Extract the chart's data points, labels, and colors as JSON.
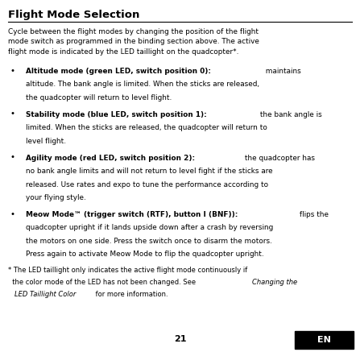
{
  "title": "Flight Mode Selection",
  "bg_color": "#ffffff",
  "text_color": "#000000",
  "en_bg_color": "#000000",
  "en_text_color": "#ffffff",
  "page_number": "21",
  "intro": "Cycle between the flight modes by changing the position of the flight\nmode switch as programmed in the binding section above. The active\nflight mode is indicated by the LED taillight on the quadcopter*.",
  "bullets": [
    {
      "bold": "Altitude mode (green LED, switch position 0):",
      "normal": " maintains\naltitude. The bank angle is limited. When the sticks are released,\nthe quadcopter will return to level flight."
    },
    {
      "bold": "Stability mode (blue LED, switch position 1):",
      "normal": " the bank angle is\nlimited. When the sticks are released, the quadcopter will return to\nlevel flight."
    },
    {
      "bold": "Agility mode (red LED, switch position 2):",
      "normal": " the quadcopter has\nno bank angle limits and will not return to level fight if the sticks are\nreleased. Use rates and expo to tune the performance according to\nyour flying style."
    },
    {
      "bold": "Meow Mode™ (trigger switch (RTF), button I (BNF)):",
      "normal": " flips the\nquadcopter upright if it lands upside down after a crash by reversing\nthe motors on one side. Press the switch once to disarm the motors.\nPress again to activate Meow Mode to flip the quadcopter upright."
    }
  ],
  "footnote_line1": "* The LED taillight only indicates the active flight mode continuously if",
  "footnote_line2_pre": "  the color mode of the LED has not been changed. See ",
  "footnote_line2_italic": "Changing the",
  "footnote_line3_italic": "  LED Taillight Color",
  "footnote_line3_end": " for more information."
}
